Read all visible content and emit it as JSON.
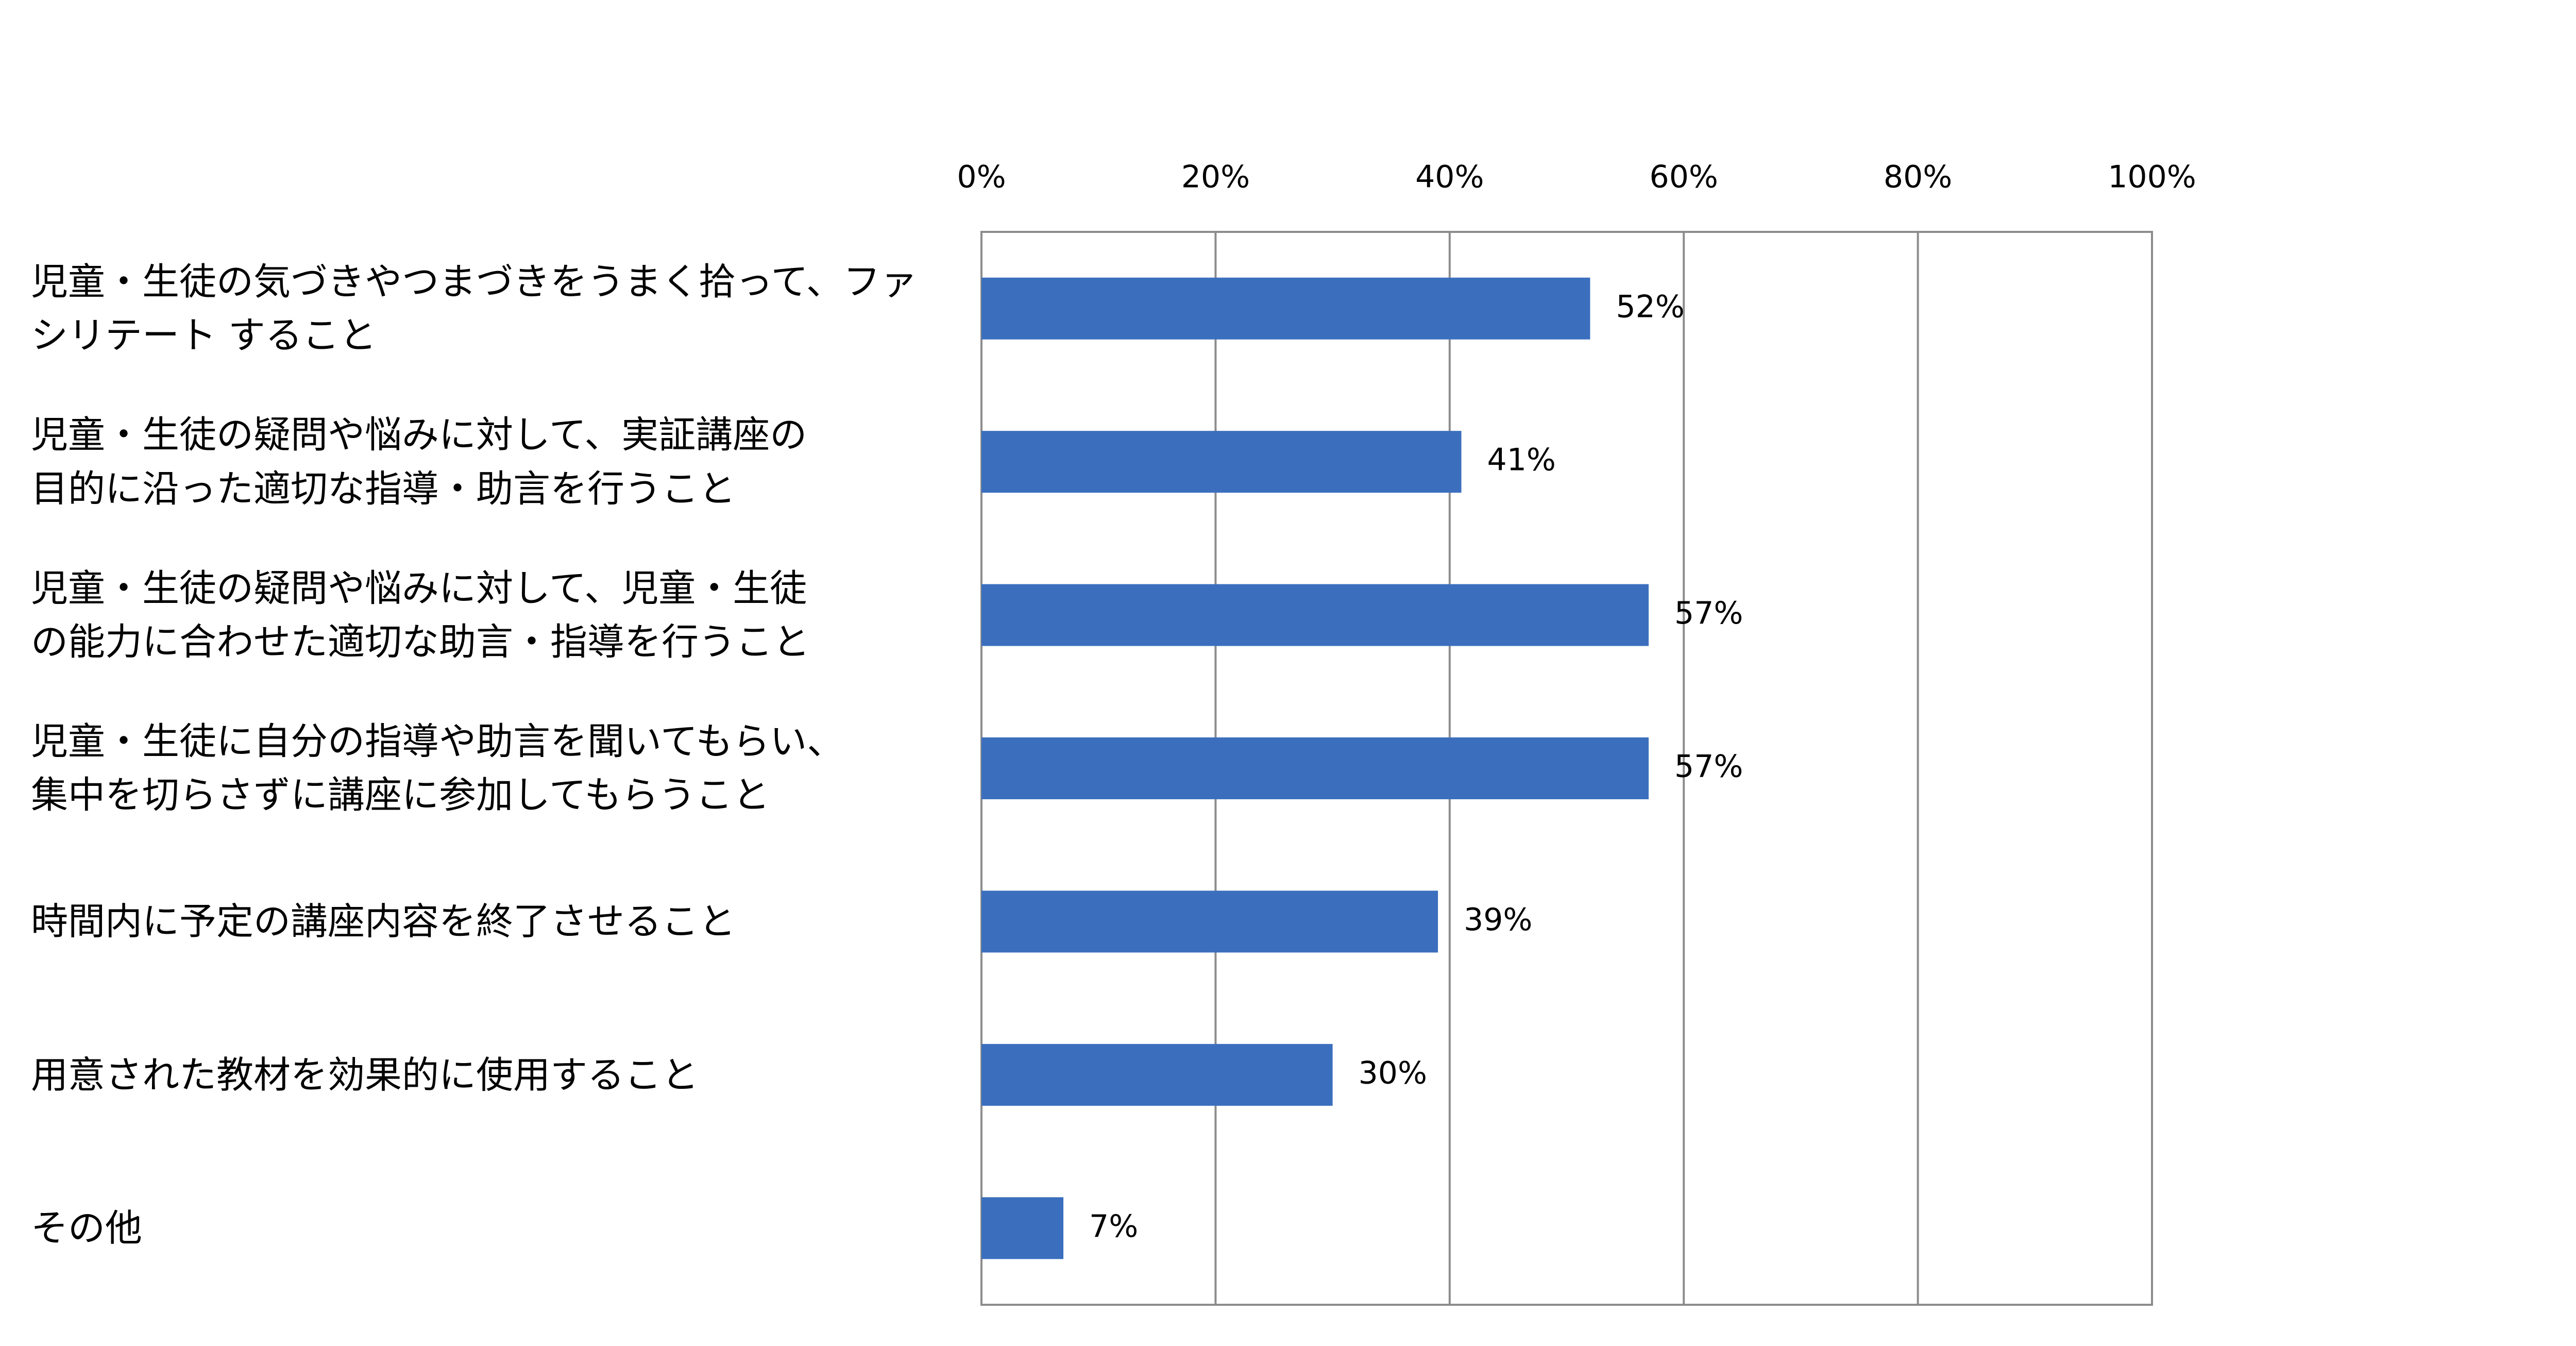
{
  "chart_data": {
    "type": "barh",
    "categories": [
      "児童・生徒の気づきやつまづきをうまく拾って、ファ\nシリテート すること",
      "児童・生徒の疑問や悩みに対して、実証講座の\n目的に沿った適切な指導・助言を行うこと",
      "児童・生徒の疑問や悩みに対して、児童・生徒\nの能力に合わせた適切な助言・指導を行うこと",
      "児童・生徒に自分の指導や助言を聞いてもらい、\n集中を切らさずに講座に参加してもらうこと",
      "時間内に予定の講座内容を終了させること",
      "用意された教材を効果的に使用すること",
      "その他"
    ],
    "values": [
      52,
      41,
      57,
      57,
      39,
      30,
      7
    ],
    "value_labels": [
      "52%",
      "41%",
      "57%",
      "57%",
      "39%",
      "30%",
      "7%"
    ],
    "color": "#3b6fbe",
    "xlim": [
      0,
      100
    ],
    "xticks": [
      {
        "value": 0,
        "label": "0%"
      },
      {
        "value": 20,
        "label": "20%"
      },
      {
        "value": 40,
        "label": "40%"
      },
      {
        "value": 60,
        "label": "60%"
      },
      {
        "value": 80,
        "label": "80%"
      },
      {
        "value": 100,
        "label": "100%"
      }
    ],
    "grid": true
  }
}
